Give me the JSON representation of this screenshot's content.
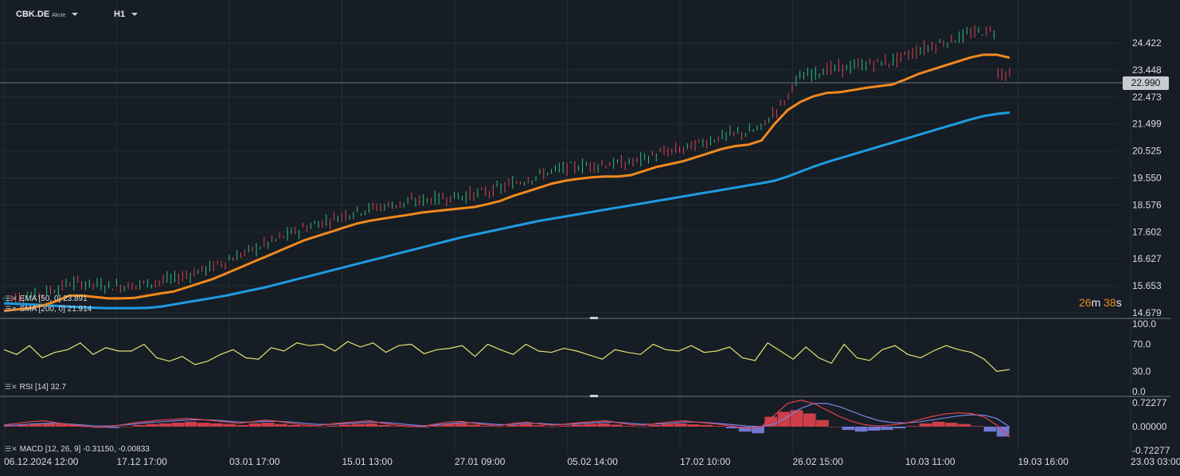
{
  "header": {
    "symbol": "CBK.DE",
    "instrument_type": "Akcie",
    "timeframe": "H1"
  },
  "countdown": {
    "minutes": "26",
    "m_unit": "m",
    "seconds": "38",
    "s_unit": "s"
  },
  "colors": {
    "background": "#161d25",
    "grid": "#222b35",
    "candle_up": "#2ec27e",
    "candle_down": "#e0434c",
    "ema": "#f0891d",
    "sma": "#1e9be0",
    "rsi": "#e8e26e",
    "macd_line": "#e0434c",
    "signal_line": "#7b83e6"
  },
  "legends": {
    "ema": "EMA [50, 0] 23.891",
    "sma": "SMA [200, 0] 21.914",
    "rsi": "RSI [14] 32.7",
    "macd": "MACD [12, 26, 9] -0.31150, -0.00833"
  },
  "chart_data": [
    {
      "type": "line",
      "panel": "price",
      "title": "",
      "current_price": "22.990",
      "y_ticks": [
        "24.422",
        "23.448",
        "22.473",
        "21.499",
        "20.525",
        "19.550",
        "18.576",
        "17.602",
        "16.627",
        "15.653",
        "14.679"
      ],
      "ylim": [
        14.679,
        25.4
      ],
      "x_labels": [
        "06.12.2024 12:00",
        "17.12 17:00",
        "03.01 17:00",
        "15.01 13:00",
        "27.01 09:00",
        "05.02 14:00",
        "17.02 10:00",
        "26.02 15:00",
        "10.03 11:00",
        "19.03 16:00",
        "23.03 03:00"
      ],
      "series": [
        {
          "name": "EMA [50, 0]",
          "values": [
            14.75,
            14.8,
            14.85,
            14.95,
            15.1,
            15.3,
            15.3,
            15.25,
            15.2,
            15.2,
            15.22,
            15.3,
            15.38,
            15.45,
            15.6,
            15.75,
            15.9,
            16.1,
            16.3,
            16.5,
            16.7,
            16.9,
            17.1,
            17.3,
            17.45,
            17.6,
            17.75,
            17.9,
            18.0,
            18.08,
            18.15,
            18.22,
            18.3,
            18.35,
            18.4,
            18.45,
            18.5,
            18.6,
            18.72,
            18.9,
            19.05,
            19.2,
            19.35,
            19.45,
            19.52,
            19.57,
            19.6,
            19.6,
            19.65,
            19.8,
            19.95,
            20.05,
            20.15,
            20.3,
            20.45,
            20.6,
            20.7,
            20.75,
            20.9,
            21.5,
            22.0,
            22.3,
            22.5,
            22.62,
            22.65,
            22.72,
            22.8,
            22.86,
            22.92,
            23.1,
            23.3,
            23.45,
            23.6,
            23.75,
            23.9,
            24.0,
            24.0,
            23.89
          ]
        },
        {
          "name": "SMA [200, 0]",
          "values": [
            15.02,
            15.0,
            14.98,
            14.96,
            14.93,
            14.9,
            14.88,
            14.86,
            14.85,
            14.85,
            14.85,
            14.86,
            14.9,
            14.98,
            15.06,
            15.14,
            15.22,
            15.3,
            15.4,
            15.5,
            15.6,
            15.72,
            15.84,
            15.96,
            16.08,
            16.2,
            16.32,
            16.44,
            16.56,
            16.68,
            16.8,
            16.92,
            17.04,
            17.16,
            17.28,
            17.4,
            17.5,
            17.6,
            17.7,
            17.8,
            17.9,
            18.0,
            18.08,
            18.16,
            18.24,
            18.32,
            18.4,
            18.48,
            18.56,
            18.64,
            18.72,
            18.8,
            18.88,
            18.96,
            19.04,
            19.12,
            19.2,
            19.28,
            19.36,
            19.45,
            19.6,
            19.78,
            19.96,
            20.12,
            20.26,
            20.4,
            20.54,
            20.68,
            20.82,
            20.96,
            21.1,
            21.24,
            21.38,
            21.52,
            21.66,
            21.78,
            21.86,
            21.91
          ]
        }
      ]
    },
    {
      "type": "line",
      "panel": "rsi",
      "title": "",
      "y_ticks": [
        "100.0",
        "70.0",
        "30.0",
        "0.0"
      ],
      "ylim": [
        0,
        100
      ],
      "series": [
        {
          "name": "RSI [14]",
          "values": [
            62,
            55,
            68,
            50,
            58,
            62,
            72,
            55,
            65,
            60,
            60,
            70,
            50,
            45,
            52,
            40,
            45,
            55,
            62,
            50,
            48,
            65,
            60,
            72,
            68,
            70,
            60,
            74,
            66,
            72,
            58,
            68,
            70,
            56,
            62,
            64,
            68,
            52,
            70,
            62,
            55,
            70,
            60,
            58,
            64,
            60,
            54,
            48,
            62,
            58,
            55,
            70,
            62,
            60,
            68,
            58,
            60,
            66,
            50,
            46,
            72,
            60,
            48,
            66,
            50,
            42,
            70,
            50,
            46,
            62,
            68,
            55,
            50,
            60,
            68,
            62,
            58,
            48,
            30,
            32.7
          ]
        }
      ]
    },
    {
      "type": "bar",
      "panel": "macd",
      "title": "",
      "y_ticks": [
        "0.72277",
        "0.00000",
        "-0.72277"
      ],
      "ylim": [
        -0.72277,
        0.72277
      ],
      "histogram": [
        0.02,
        0.05,
        0.08,
        0.1,
        0.08,
        0.04,
        0.0,
        -0.03,
        -0.04,
        0.0,
        0.05,
        0.08,
        0.1,
        0.12,
        0.15,
        0.12,
        0.1,
        0.08,
        0.05,
        0.1,
        0.12,
        0.08,
        0.05,
        0.02,
        0.0,
        0.03,
        0.06,
        0.08,
        0.1,
        0.05,
        0.02,
        0.0,
        -0.02,
        0.04,
        0.08,
        0.1,
        0.06,
        0.02,
        0.0,
        0.05,
        0.08,
        0.04,
        0.0,
        0.03,
        0.06,
        0.08,
        0.1,
        0.06,
        0.02,
        0.0,
        0.05,
        0.08,
        0.1,
        0.07,
        0.05,
        0.02,
        -0.05,
        -0.15,
        -0.2,
        0.3,
        0.45,
        0.5,
        0.4,
        0.2,
        0.0,
        -0.1,
        -0.15,
        -0.12,
        -0.1,
        -0.05,
        0.02,
        0.1,
        0.15,
        0.12,
        0.08,
        0.02,
        -0.15,
        -0.3
      ],
      "series": [
        {
          "name": "MACD",
          "values": [
            0.05,
            0.1,
            0.15,
            0.18,
            0.12,
            0.06,
            0.02,
            -0.02,
            0.0,
            0.05,
            0.12,
            0.16,
            0.2,
            0.22,
            0.25,
            0.22,
            0.18,
            0.14,
            0.1,
            0.15,
            0.2,
            0.16,
            0.1,
            0.05,
            0.03,
            0.08,
            0.12,
            0.15,
            0.18,
            0.1,
            0.05,
            0.02,
            0.0,
            0.08,
            0.14,
            0.16,
            0.1,
            0.05,
            0.03,
            0.1,
            0.14,
            0.08,
            0.04,
            0.08,
            0.12,
            0.15,
            0.18,
            0.12,
            0.06,
            0.04,
            0.1,
            0.14,
            0.18,
            0.14,
            0.1,
            0.06,
            0.0,
            -0.05,
            0.0,
            0.35,
            0.7,
            0.8,
            0.7,
            0.5,
            0.3,
            0.15,
            0.05,
            0.02,
            0.05,
            0.1,
            0.2,
            0.3,
            0.38,
            0.42,
            0.4,
            0.3,
            0.05,
            -0.31
          ]
        },
        {
          "name": "Signal",
          "values": [
            0.03,
            0.05,
            0.08,
            0.1,
            0.1,
            0.08,
            0.05,
            0.02,
            0.02,
            0.04,
            0.08,
            0.12,
            0.15,
            0.17,
            0.2,
            0.21,
            0.2,
            0.17,
            0.14,
            0.14,
            0.16,
            0.16,
            0.14,
            0.1,
            0.07,
            0.07,
            0.09,
            0.11,
            0.14,
            0.13,
            0.1,
            0.06,
            0.03,
            0.05,
            0.09,
            0.12,
            0.12,
            0.09,
            0.06,
            0.07,
            0.1,
            0.1,
            0.07,
            0.07,
            0.09,
            0.11,
            0.14,
            0.13,
            0.1,
            0.07,
            0.08,
            0.1,
            0.14,
            0.14,
            0.12,
            0.09,
            0.05,
            0.02,
            0.0,
            0.08,
            0.3,
            0.55,
            0.7,
            0.7,
            0.6,
            0.45,
            0.3,
            0.18,
            0.12,
            0.11,
            0.14,
            0.2,
            0.26,
            0.32,
            0.36,
            0.35,
            0.25,
            -0.01
          ]
        }
      ]
    }
  ]
}
